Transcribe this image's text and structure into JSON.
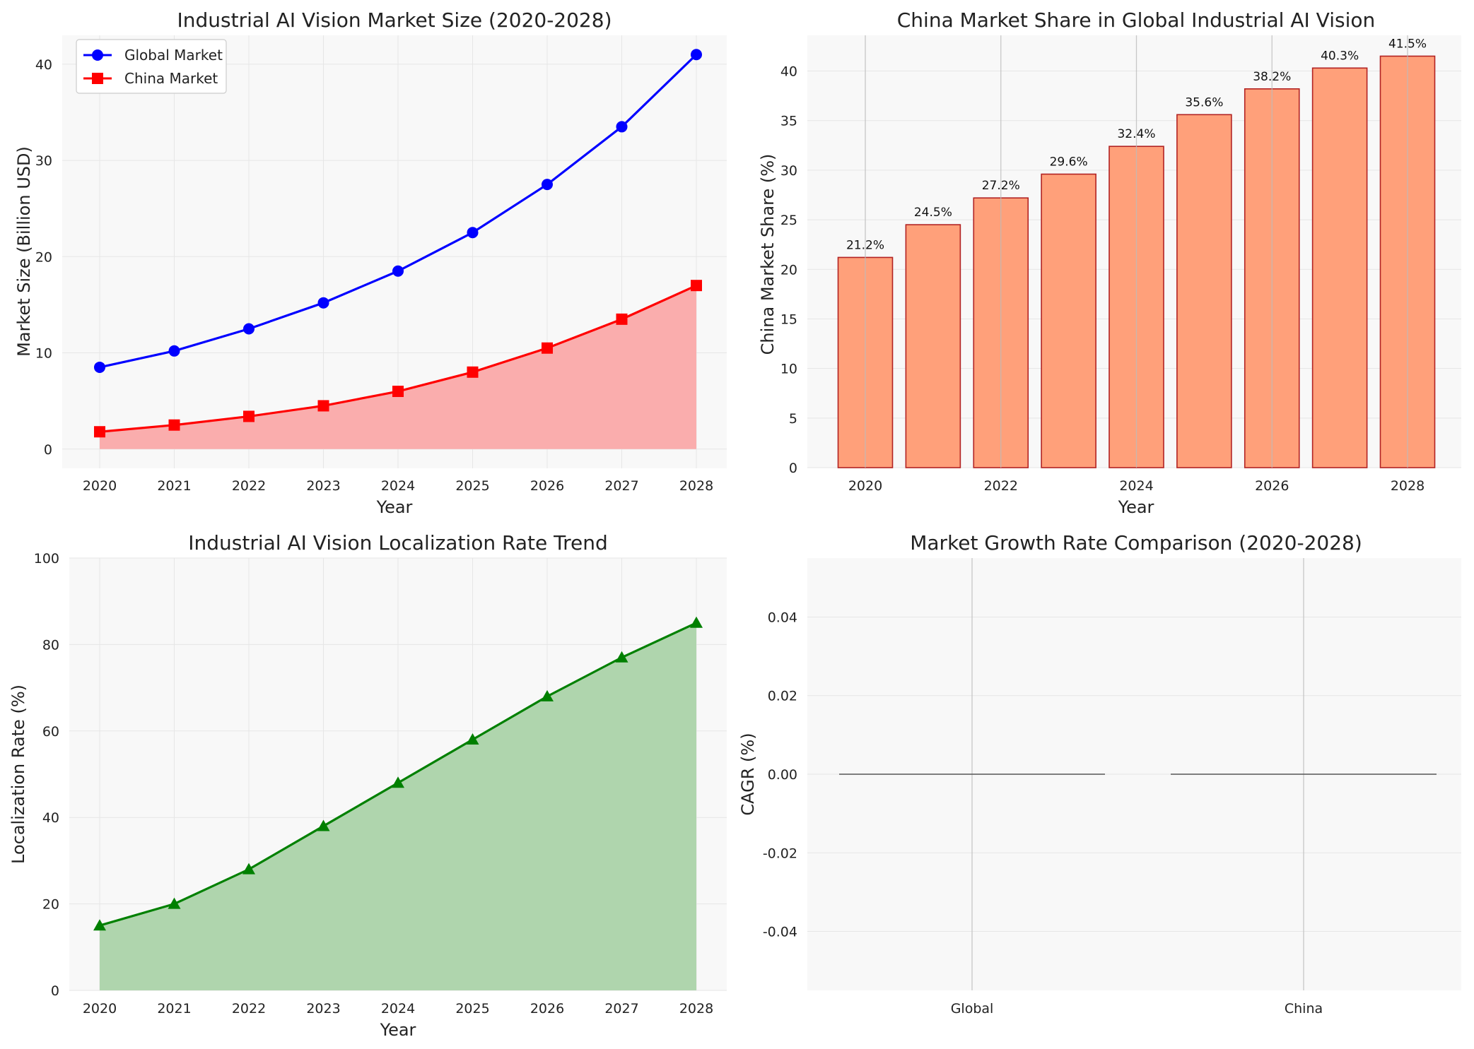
{
  "chart_data": [
    {
      "type": "line",
      "title": "Industrial AI Vision Market Size (2020-2028)",
      "xlabel": "Year",
      "ylabel": "Market Size (Billion USD)",
      "x": [
        2020,
        2021,
        2022,
        2023,
        2024,
        2025,
        2026,
        2027,
        2028
      ],
      "xticks": [
        "2020",
        "2021",
        "2022",
        "2023",
        "2024",
        "2025",
        "2026",
        "2027",
        "2028"
      ],
      "ylim": [
        -2,
        43
      ],
      "yticks": [
        "0",
        "10",
        "20",
        "30",
        "40"
      ],
      "grid": true,
      "legend_position": "top-left",
      "series": [
        {
          "name": "Global Market",
          "color": "#0000ff",
          "marker": "circle",
          "values": [
            8.5,
            10.2,
            12.5,
            15.2,
            18.5,
            22.5,
            27.5,
            33.5,
            41.0
          ]
        },
        {
          "name": "China Market",
          "color": "#ff0000",
          "marker": "square",
          "fill": "#faadad",
          "values": [
            1.8,
            2.5,
            3.4,
            4.5,
            6.0,
            8.0,
            10.5,
            13.5,
            17.0
          ]
        }
      ]
    },
    {
      "type": "bar",
      "title": "China Market Share in Global Industrial AI Vision",
      "xlabel": "Year",
      "ylabel": "China Market Share (%)",
      "categories": [
        2020,
        2021,
        2022,
        2023,
        2024,
        2025,
        2026,
        2027,
        2028
      ],
      "xticks": [
        "2020",
        "2022",
        "2024",
        "2026",
        "2028"
      ],
      "values": [
        21.2,
        24.5,
        27.2,
        29.6,
        32.4,
        35.6,
        38.2,
        40.3,
        41.5
      ],
      "labels": [
        "21.2%",
        "24.5%",
        "27.2%",
        "29.6%",
        "32.4%",
        "35.6%",
        "38.2%",
        "40.3%",
        "41.5%"
      ],
      "ylim": [
        0,
        43.6
      ],
      "yticks": [
        "0",
        "5",
        "10",
        "15",
        "20",
        "25",
        "30",
        "35",
        "40"
      ],
      "bar_color": "#ffa07a",
      "edge_color": "#b22222",
      "grid": true
    },
    {
      "type": "area",
      "title": "Industrial AI Vision Localization Rate Trend",
      "xlabel": "Year",
      "ylabel": "Localization Rate (%)",
      "x": [
        2020,
        2021,
        2022,
        2023,
        2024,
        2025,
        2026,
        2027,
        2028
      ],
      "xticks": [
        "2020",
        "2021",
        "2022",
        "2023",
        "2024",
        "2025",
        "2026",
        "2027",
        "2028"
      ],
      "values": [
        15,
        20,
        28,
        38,
        48,
        58,
        68,
        77,
        85
      ],
      "ylim": [
        0,
        100
      ],
      "yticks": [
        "0",
        "20",
        "40",
        "60",
        "80",
        "100"
      ],
      "color": "#008000",
      "fill": "#afd5ad",
      "marker": "triangle",
      "grid": true
    },
    {
      "type": "bar",
      "title": "Market Growth Rate Comparison (2020-2028)",
      "xlabel": "",
      "ylabel": "CAGR (%)",
      "categories": [
        "Global",
        "China"
      ],
      "values": [
        0,
        0
      ],
      "ylim": [
        -0.055,
        0.055
      ],
      "yticks": [
        "-0.04",
        "-0.02",
        "0.00",
        "0.02",
        "0.04"
      ],
      "line_color": "#555555",
      "grid": true
    }
  ]
}
